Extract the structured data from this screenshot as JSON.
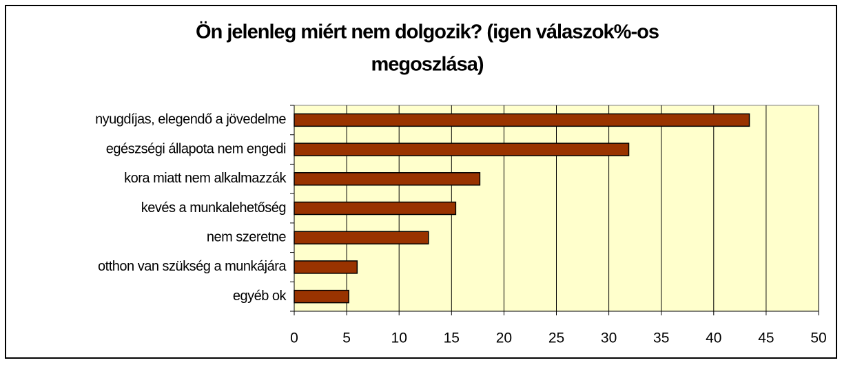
{
  "chart_data": {
    "type": "hbar",
    "title": [
      "Ön jelenleg miért nem dolgozik? (igen válaszok%-os",
      "megoszlása)"
    ],
    "categories": [
      "nyugdíjas, elegendő a jövedelme",
      "egészségi állapota nem engedi",
      "kora miatt nem alkalmazzák",
      "kevés a munkalehetőség",
      "nem szeretne",
      "otthon van szükség a munkájára",
      "egyéb ok"
    ],
    "values": [
      43.4,
      31.9,
      17.7,
      15.4,
      12.8,
      6.0,
      5.2
    ],
    "color": "#993300",
    "plot_background": "#ffffcc",
    "xlim": [
      0,
      50
    ],
    "xticks": [
      0,
      5,
      10,
      15,
      20,
      25,
      30,
      35,
      40,
      45,
      50
    ],
    "grid": true
  }
}
